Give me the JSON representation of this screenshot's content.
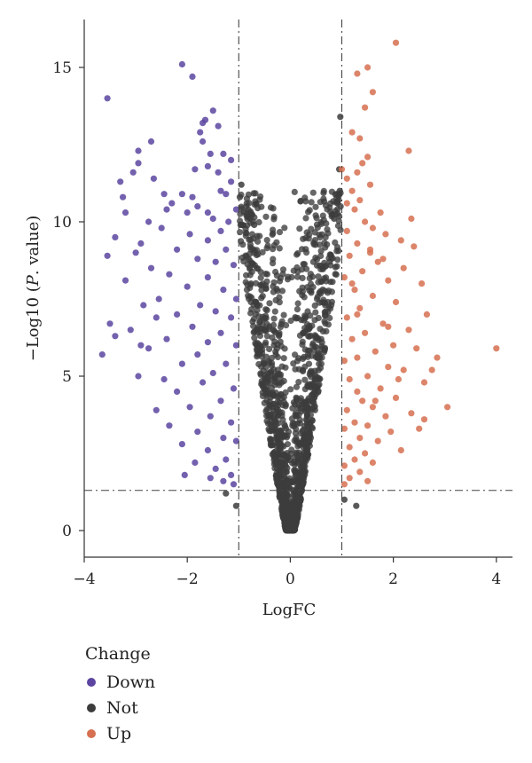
{
  "chart_data": {
    "type": "scatter",
    "xlabel": "LogFC",
    "ylabel_prefix": "−Log10 (",
    "ylabel_italic": "P",
    "ylabel_suffix": ". value)",
    "xlim": [
      -4.05,
      4.35
    ],
    "ylim": [
      -0.8,
      16.5
    ],
    "xticks": [
      -4,
      -2,
      0,
      2,
      4
    ],
    "xtick_labels": [
      "−4",
      "−2",
      "0",
      "2",
      "4"
    ],
    "yticks": [
      0,
      5,
      10,
      15
    ],
    "ytick_labels": [
      "0",
      "5",
      "10",
      "15"
    ],
    "thresholds": {
      "logfc": [
        -1,
        1
      ],
      "neg_log10_p": 1.3
    },
    "legend": {
      "title": "Change",
      "placement": "bottom-left, below plot",
      "items": [
        {
          "label": "Down",
          "color": "#5b45a0"
        },
        {
          "label": "Not",
          "color": "#3c3c3c"
        },
        {
          "label": "Up",
          "color": "#d67050"
        }
      ]
    },
    "series": [
      {
        "name": "Down",
        "color": "#5b45a0",
        "points": [
          [
            -3.55,
            14.0
          ],
          [
            -2.1,
            15.1
          ],
          [
            -1.9,
            14.7
          ],
          [
            -1.5,
            13.6
          ],
          [
            -1.7,
            13.2
          ],
          [
            -1.65,
            13.3
          ],
          [
            -1.75,
            12.9
          ],
          [
            -1.4,
            13.1
          ],
          [
            -2.7,
            12.6
          ],
          [
            -2.95,
            12.3
          ],
          [
            -1.85,
            11.7
          ],
          [
            -1.55,
            12.2
          ],
          [
            -1.7,
            12.6
          ],
          [
            -1.3,
            12.2
          ],
          [
            -1.6,
            11.8
          ],
          [
            -1.4,
            11.6
          ],
          [
            -2.65,
            11.4
          ],
          [
            -3.3,
            11.3
          ],
          [
            -3.05,
            11.6
          ],
          [
            -2.95,
            11.9
          ],
          [
            -1.15,
            11.3
          ],
          [
            -1.35,
            11.0
          ],
          [
            -1.25,
            10.9
          ],
          [
            -1.9,
            10.8
          ],
          [
            -2.1,
            10.9
          ],
          [
            -2.3,
            10.6
          ],
          [
            -2.45,
            10.9
          ],
          [
            -3.25,
            10.8
          ],
          [
            -2.0,
            10.3
          ],
          [
            -1.8,
            10.5
          ],
          [
            -1.6,
            10.3
          ],
          [
            -1.5,
            10.1
          ],
          [
            -1.2,
            10.0
          ],
          [
            -2.4,
            10.4
          ],
          [
            -3.2,
            10.3
          ],
          [
            -3.4,
            9.5
          ],
          [
            -2.5,
            9.8
          ],
          [
            -2.9,
            9.3
          ],
          [
            -1.35,
            9.7
          ],
          [
            -1.6,
            9.4
          ],
          [
            -1.95,
            9.6
          ],
          [
            -2.2,
            9.1
          ],
          [
            -3.0,
            9.0
          ],
          [
            -3.55,
            8.9
          ],
          [
            -2.7,
            8.5
          ],
          [
            -1.25,
            9.1
          ],
          [
            -1.45,
            8.7
          ],
          [
            -1.8,
            8.8
          ],
          [
            -1.1,
            8.6
          ],
          [
            -2.35,
            8.3
          ],
          [
            -1.6,
            8.2
          ],
          [
            -3.2,
            8.1
          ],
          [
            -2.0,
            7.9
          ],
          [
            -1.3,
            7.8
          ],
          [
            -2.55,
            7.5
          ],
          [
            -1.05,
            7.5
          ],
          [
            -2.85,
            7.3
          ],
          [
            -1.75,
            7.3
          ],
          [
            -1.45,
            7.1
          ],
          [
            -2.2,
            7.0
          ],
          [
            -2.6,
            6.9
          ],
          [
            -1.15,
            6.9
          ],
          [
            -1.9,
            6.6
          ],
          [
            -3.1,
            6.5
          ],
          [
            -1.35,
            6.4
          ],
          [
            -2.4,
            6.2
          ],
          [
            -1.6,
            6.1
          ],
          [
            -3.4,
            6.3
          ],
          [
            -1.05,
            6.0
          ],
          [
            -2.75,
            5.9
          ],
          [
            -1.8,
            5.7
          ],
          [
            -3.65,
            5.7
          ],
          [
            -2.1,
            5.4
          ],
          [
            -1.25,
            5.4
          ],
          [
            -1.5,
            5.1
          ],
          [
            -2.95,
            5.0
          ],
          [
            -2.45,
            4.9
          ],
          [
            -1.7,
            4.8
          ],
          [
            -1.1,
            4.6
          ],
          [
            -2.2,
            4.5
          ],
          [
            -1.35,
            4.2
          ],
          [
            -1.95,
            4.0
          ],
          [
            -2.6,
            3.9
          ],
          [
            -1.55,
            3.7
          ],
          [
            -1.15,
            3.5
          ],
          [
            -2.35,
            3.4
          ],
          [
            -1.8,
            3.2
          ],
          [
            -1.3,
            3.0
          ],
          [
            -2.1,
            2.8
          ],
          [
            -1.05,
            2.9
          ],
          [
            -1.6,
            2.6
          ],
          [
            -1.25,
            2.3
          ],
          [
            -1.85,
            2.2
          ],
          [
            -1.45,
            2.0
          ],
          [
            -1.15,
            1.8
          ],
          [
            -2.05,
            1.8
          ],
          [
            -1.55,
            1.7
          ],
          [
            -1.1,
            1.5
          ],
          [
            -1.3,
            1.6
          ],
          [
            -3.5,
            6.7
          ],
          [
            -2.9,
            6.0
          ],
          [
            -2.75,
            10.0
          ],
          [
            -1.15,
            12.0
          ],
          [
            -1.05,
            10.4
          ]
        ]
      },
      {
        "name": "Not",
        "color": "#3c3c3c",
        "points": [
          [
            -0.95,
            11.2
          ],
          [
            -0.98,
            10.8
          ],
          [
            -0.85,
            10.2
          ],
          [
            0.9,
            10.9
          ],
          [
            0.96,
            11.0
          ],
          [
            0.92,
            10.6
          ],
          [
            0.85,
            10.1
          ],
          [
            0.97,
            13.4
          ],
          [
            -0.7,
            9.9
          ],
          [
            0.95,
            11.7
          ],
          [
            -1.25,
            1.2
          ],
          [
            -1.05,
            0.8
          ],
          [
            1.28,
            0.8
          ],
          [
            1.05,
            1.0
          ]
        ]
      },
      {
        "name": "Up",
        "color": "#d67050",
        "points": [
          [
            2.05,
            15.8
          ],
          [
            1.5,
            15.0
          ],
          [
            1.3,
            14.8
          ],
          [
            1.6,
            14.2
          ],
          [
            1.45,
            13.7
          ],
          [
            1.35,
            12.7
          ],
          [
            1.5,
            12.1
          ],
          [
            2.3,
            12.3
          ],
          [
            1.0,
            11.7
          ],
          [
            1.3,
            11.6
          ],
          [
            1.1,
            11.4
          ],
          [
            1.55,
            11.2
          ],
          [
            1.2,
            11.0
          ],
          [
            1.35,
            10.7
          ],
          [
            1.1,
            10.6
          ],
          [
            1.25,
            10.4
          ],
          [
            1.75,
            10.3
          ],
          [
            1.45,
            10.0
          ],
          [
            2.35,
            10.1
          ],
          [
            1.6,
            9.8
          ],
          [
            1.1,
            9.7
          ],
          [
            1.85,
            9.6
          ],
          [
            2.15,
            9.4
          ],
          [
            1.3,
            9.3
          ],
          [
            2.4,
            9.2
          ],
          [
            1.55,
            9.0
          ],
          [
            1.15,
            8.9
          ],
          [
            1.7,
            8.7
          ],
          [
            2.2,
            8.5
          ],
          [
            1.4,
            8.4
          ],
          [
            1.05,
            8.2
          ],
          [
            1.9,
            8.1
          ],
          [
            2.55,
            8.0
          ],
          [
            1.25,
            7.8
          ],
          [
            1.6,
            7.6
          ],
          [
            2.05,
            7.4
          ],
          [
            1.35,
            7.2
          ],
          [
            2.65,
            7.0
          ],
          [
            1.1,
            6.9
          ],
          [
            1.8,
            6.7
          ],
          [
            2.3,
            6.5
          ],
          [
            1.45,
            6.4
          ],
          [
            1.2,
            6.2
          ],
          [
            2.0,
            6.0
          ],
          [
            1.65,
            5.8
          ],
          [
            2.45,
            5.9
          ],
          [
            4.0,
            5.9
          ],
          [
            1.3,
            5.6
          ],
          [
            2.85,
            5.6
          ],
          [
            1.05,
            5.5
          ],
          [
            1.9,
            5.3
          ],
          [
            2.2,
            5.2
          ],
          [
            1.5,
            5.0
          ],
          [
            1.15,
            4.9
          ],
          [
            2.6,
            4.8
          ],
          [
            1.75,
            4.6
          ],
          [
            1.3,
            4.5
          ],
          [
            2.05,
            4.3
          ],
          [
            1.4,
            4.2
          ],
          [
            1.6,
            4.0
          ],
          [
            3.05,
            4.0
          ],
          [
            1.1,
            3.9
          ],
          [
            2.35,
            3.8
          ],
          [
            1.85,
            3.7
          ],
          [
            1.25,
            3.5
          ],
          [
            2.6,
            3.6
          ],
          [
            1.5,
            3.4
          ],
          [
            1.05,
            3.3
          ],
          [
            1.95,
            3.2
          ],
          [
            1.35,
            3.0
          ],
          [
            1.7,
            2.9
          ],
          [
            1.15,
            2.7
          ],
          [
            2.15,
            2.6
          ],
          [
            1.45,
            2.5
          ],
          [
            1.25,
            2.3
          ],
          [
            1.6,
            2.2
          ],
          [
            1.05,
            2.1
          ],
          [
            1.35,
            1.9
          ],
          [
            1.15,
            1.7
          ],
          [
            1.5,
            1.6
          ],
          [
            1.05,
            1.5
          ],
          [
            2.75,
            5.2
          ],
          [
            2.5,
            3.3
          ],
          [
            1.8,
            8.8
          ],
          [
            1.4,
            11.9
          ],
          [
            1.2,
            12.9
          ],
          [
            1.65,
            4.2
          ],
          [
            1.3,
            7.0
          ],
          [
            1.9,
            6.6
          ],
          [
            2.1,
            4.9
          ],
          [
            1.55,
            9.1
          ],
          [
            1.2,
            8.0
          ]
        ]
      }
    ]
  }
}
